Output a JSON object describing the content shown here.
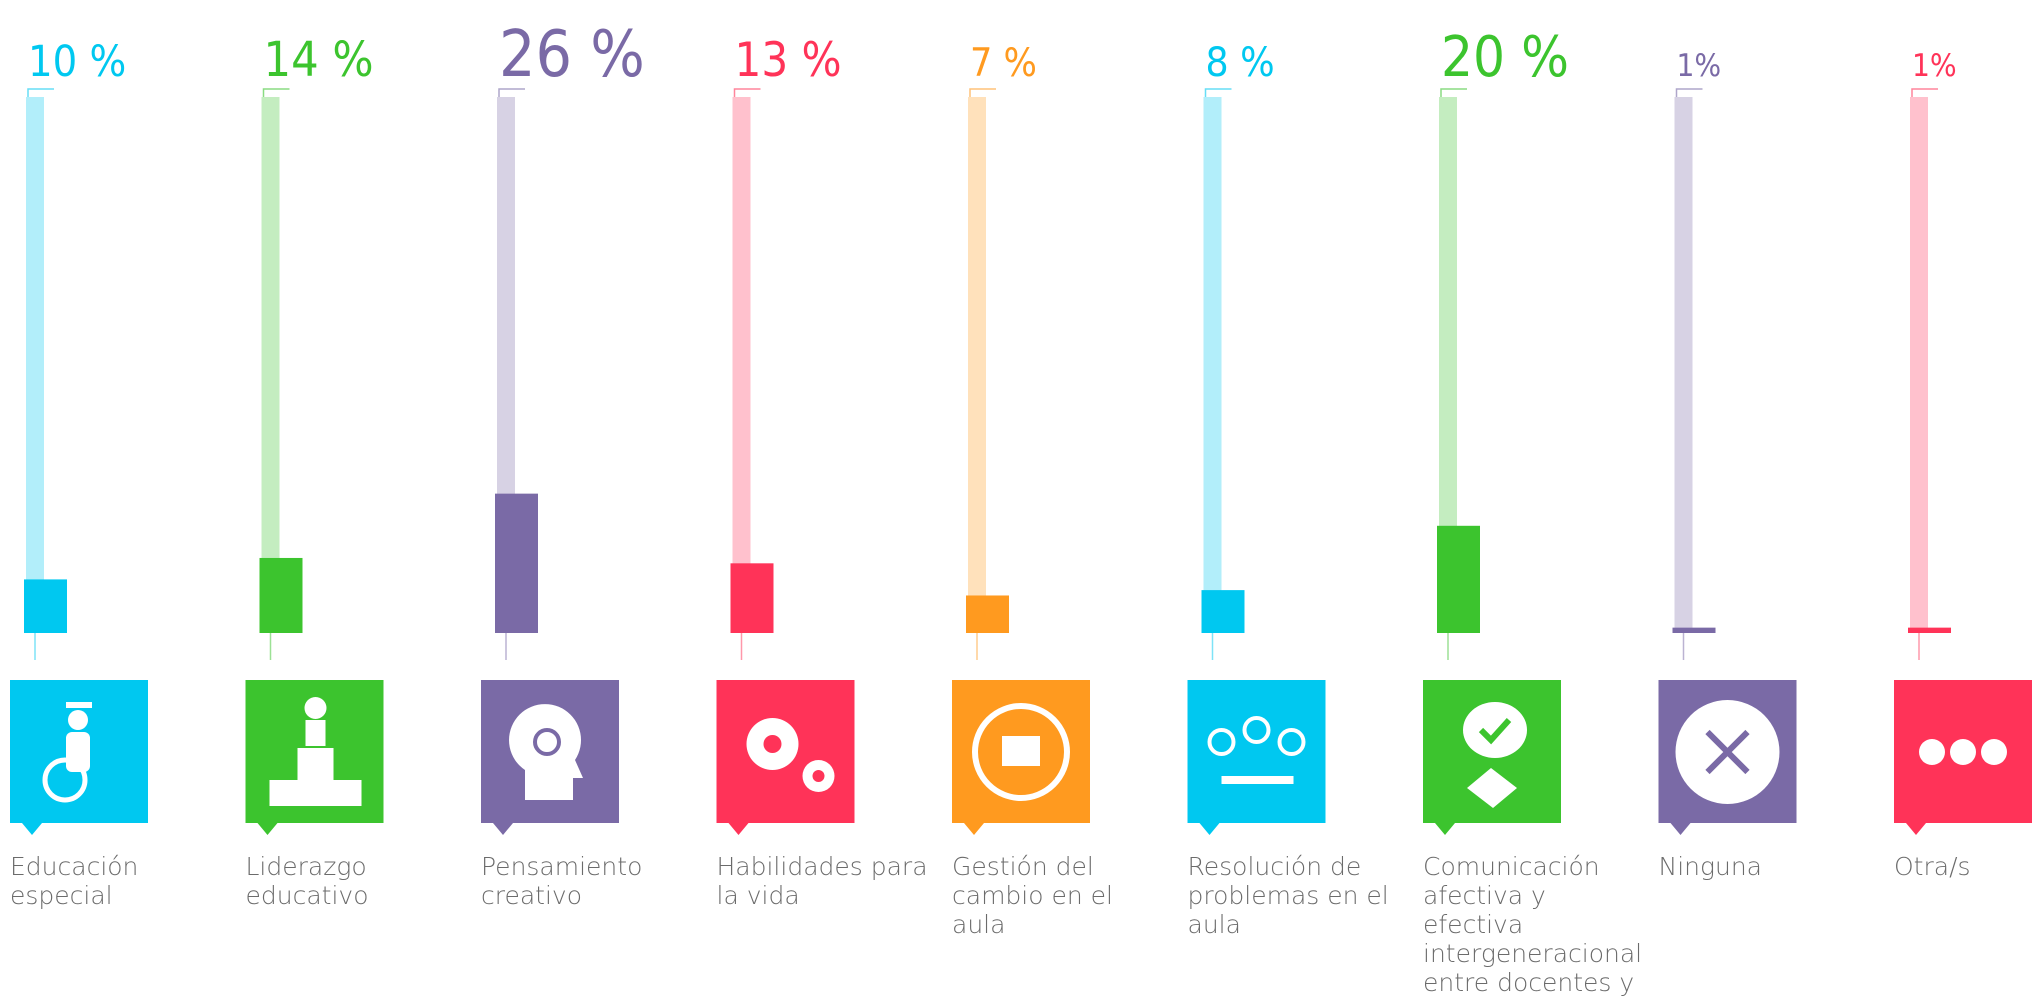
{
  "chart_data": {
    "type": "bar",
    "categories": [
      "Educación especial",
      "Liderazgo educativo",
      "Pensamiento creativo",
      "Habilidades para la vida",
      "Gestión del cambio en el aula",
      "Resolución de problemas en el aula",
      "Comunicación afectiva y efectiva intergeneracional entre docentes y estudiantes",
      "Ninguna",
      "Otra/s"
    ],
    "values": [
      10,
      14,
      26,
      13,
      7,
      8,
      20,
      1,
      1
    ],
    "value_labels": [
      "10 %",
      "14 %",
      "26 %",
      "13 %",
      "7 %",
      "8 %",
      "20 %",
      "1%",
      "1%"
    ],
    "colors": [
      "#00c8f0",
      "#3cc42e",
      "#7a6aa6",
      "#ff3358",
      "#ff9a1f",
      "#00c8f0",
      "#3cc42e",
      "#7a6aa6",
      "#ff3358"
    ],
    "ylim": [
      0,
      100
    ]
  }
}
